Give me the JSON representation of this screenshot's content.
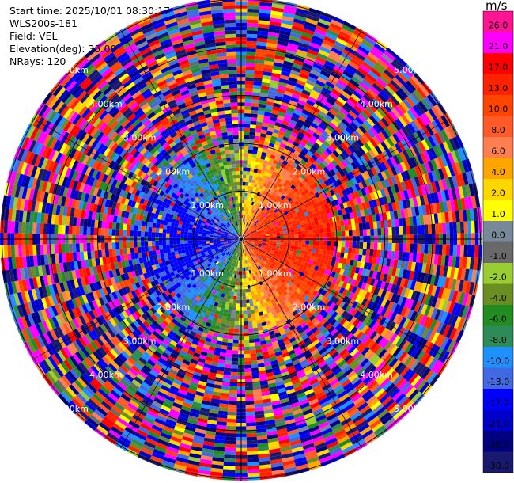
{
  "header": {
    "start_time": "Start time: 2025/10/01 08:30:17",
    "instrument": "WLS200s-181",
    "field": "Field: VEL",
    "elevation": "Elevation(deg): 35.00",
    "nrays": "NRays: 120"
  },
  "colorbar": {
    "unit": "m/s",
    "bins": [
      {
        "label": "26.0",
        "color": "#ff1493"
      },
      {
        "label": "21.0",
        "color": "#ff00ff"
      },
      {
        "label": "17.0",
        "color": "#ff0000"
      },
      {
        "label": "13.0",
        "color": "#ff2200"
      },
      {
        "label": "10.0",
        "color": "#ff4500"
      },
      {
        "label": "8.0",
        "color": "#ff5a28"
      },
      {
        "label": "6.0",
        "color": "#ff7f50"
      },
      {
        "label": "4.0",
        "color": "#ffa500"
      },
      {
        "label": "2.0",
        "color": "#ffd700"
      },
      {
        "label": "1.0",
        "color": "#ffff00"
      },
      {
        "label": "0.0",
        "color": "#778899"
      },
      {
        "label": "-1.0",
        "color": "#696969"
      },
      {
        "label": "-2.0",
        "color": "#9acd32"
      },
      {
        "label": "-4.0",
        "color": "#6b8e23"
      },
      {
        "label": "-6.0",
        "color": "#228b22"
      },
      {
        "label": "-8.0",
        "color": "#2e8b57"
      },
      {
        "label": "-10.0",
        "color": "#1e90ff"
      },
      {
        "label": "-13.0",
        "color": "#4169e1"
      },
      {
        "label": "-17.0",
        "color": "#0000ff"
      },
      {
        "label": "-21.0",
        "color": "#0000cd"
      },
      {
        "label": "-26.0",
        "color": "#000080"
      },
      {
        "label": "-30.0",
        "color": "#191970"
      }
    ]
  },
  "chart_data": {
    "type": "heatmap",
    "projection": "polar PPI (azimuth vs range)",
    "field": "VEL",
    "units": "m/s",
    "nrays": 120,
    "elevation_deg": 35.0,
    "range_rings_km": [
      1,
      2,
      3,
      4,
      5
    ],
    "ring_labels": [
      "1.00km",
      "2.00km",
      "3.00km",
      "4.00km",
      "5.00km"
    ],
    "value_range": [
      -30,
      26
    ],
    "pattern": {
      "near_range_km": 2.0,
      "west_sector": "negative velocities (-30 to -10 m/s, blue/navy)",
      "east_sector": "positive velocities (+8 to +17 m/s, red/orange)",
      "north_south_transition": "near-zero (-6 to +4 m/s, green/yellow)",
      "beyond_near_range": "noisy, all colors"
    }
  }
}
